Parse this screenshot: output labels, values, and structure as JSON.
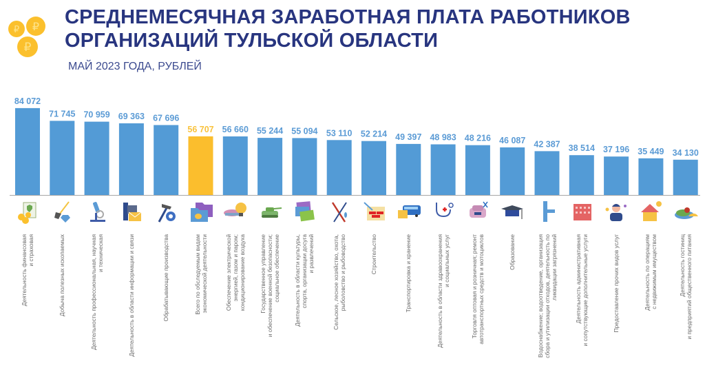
{
  "header": {
    "title_line1": "СРЕДНЕМЕСЯЧНАЯ ЗАРАБОТНАЯ ПЛАТА РАБОТНИКОВ",
    "title_line2": "ОРГАНИЗАЦИЙ ТУЛЬСКОЙ ОБЛАСТИ",
    "subtitle": "МАЙ 2023 ГОДА, РУБЛЕЙ",
    "logo_icon": "ruble-coins-icon"
  },
  "colors": {
    "bar": "#539bd6",
    "highlight": "#fbbe2d",
    "value_label": "#5b9bd5",
    "highlight_label": "#f9c23c",
    "title": "#28357f",
    "axis": "#a6a6a6"
  },
  "chart_data": {
    "type": "bar",
    "title": "СРЕДНЕМЕСЯЧНАЯ ЗАРАБОТНАЯ ПЛАТА РАБОТНИКОВ ОРГАНИЗАЦИЙ ТУЛЬСКОЙ ОБЛАСТИ",
    "subtitle": "МАЙ 2023 ГОДА, РУБЛЕЙ",
    "xlabel": "",
    "ylabel": "",
    "ylim": [
      0,
      90000
    ],
    "grid": false,
    "legend": "none",
    "highlight_index": 5,
    "categories": [
      {
        "lines": [
          "Деятельность финансовая",
          "и страховая"
        ],
        "icon": "finance-icon"
      },
      {
        "lines": [
          "Добыча полезных ископаемых"
        ],
        "icon": "mining-shovel-diamond-icon"
      },
      {
        "lines": [
          "Деятельность профессиональная, научная",
          "и техническая"
        ],
        "icon": "microscope-icon"
      },
      {
        "lines": [
          "Деятельность в области информации и связи"
        ],
        "icon": "phone-mail-icon"
      },
      {
        "lines": [
          "Обрабатывающие производства"
        ],
        "icon": "hammer-gear-icon"
      },
      {
        "lines": [
          "Всего по обследуемым видам",
          "экономической деятельности"
        ],
        "icon": "folders-icon"
      },
      {
        "lines": [
          "Обеспечение электрической",
          "энергией, газом и паром;",
          "кондиционирование воздуха"
        ],
        "icon": "lightbulb-icon"
      },
      {
        "lines": [
          "Государственное управление",
          "и обеспечение военной безопасности;",
          "социальное обеспечение"
        ],
        "icon": "tank-icon"
      },
      {
        "lines": [
          "Деятельность в области культуры,",
          "спорта, организации досуга",
          "и развлечений"
        ],
        "icon": "culture-cards-icon"
      },
      {
        "lines": [
          "Сельское, лесное хозяйство, охота,",
          "рыболовство и рыбоводство"
        ],
        "icon": "hunting-fishing-icon"
      },
      {
        "lines": [
          "Строительство"
        ],
        "icon": "bricks-trowel-icon"
      },
      {
        "lines": [
          "Транспортировка и хранение"
        ],
        "icon": "bus-icon"
      },
      {
        "lines": [
          "Деятельность в области здравоохранения",
          "и социальных услуг"
        ],
        "icon": "stethoscope-icon"
      },
      {
        "lines": [
          "Торговля оптовая и розничная; ремонт",
          "автотранспортных средств и мотоциклов"
        ],
        "icon": "car-scissors-icon"
      },
      {
        "lines": [
          "Образование"
        ],
        "icon": "graduation-cap-icon"
      },
      {
        "lines": [
          "Водоснабжение; водоотведение, организация",
          "сбора и утилизации отходов, деятельность по",
          "ликвидации загрязнений"
        ],
        "icon": "water-pipe-icon"
      },
      {
        "lines": [
          "Деятельность административная",
          "и сопутствующие дополнительные услуги"
        ],
        "icon": "office-building-icon"
      },
      {
        "lines": [
          "Предоставление прочих видов услуг"
        ],
        "icon": "person-services-icon"
      },
      {
        "lines": [
          "Деятельность по операциям",
          "с недвижимым имуществом"
        ],
        "icon": "house-icon"
      },
      {
        "lines": [
          "Деятельность гостиниц",
          "и предприятий общественного питания"
        ],
        "icon": "food-dish-icon"
      }
    ],
    "values": [
      84072,
      71745,
      70959,
      69363,
      67696,
      56707,
      56660,
      55244,
      55094,
      53110,
      52214,
      49397,
      48983,
      48216,
      46087,
      42387,
      38514,
      37196,
      35449,
      34130
    ],
    "value_labels": [
      "84 072",
      "71 745",
      "70 959",
      "69 363",
      "67 696",
      "56 707",
      "56 660",
      "55 244",
      "55 094",
      "53 110",
      "52 214",
      "49 397",
      "48 983",
      "48 216",
      "46 087",
      "42 387",
      "38 514",
      "37 196",
      "35 449",
      "34 130"
    ]
  }
}
